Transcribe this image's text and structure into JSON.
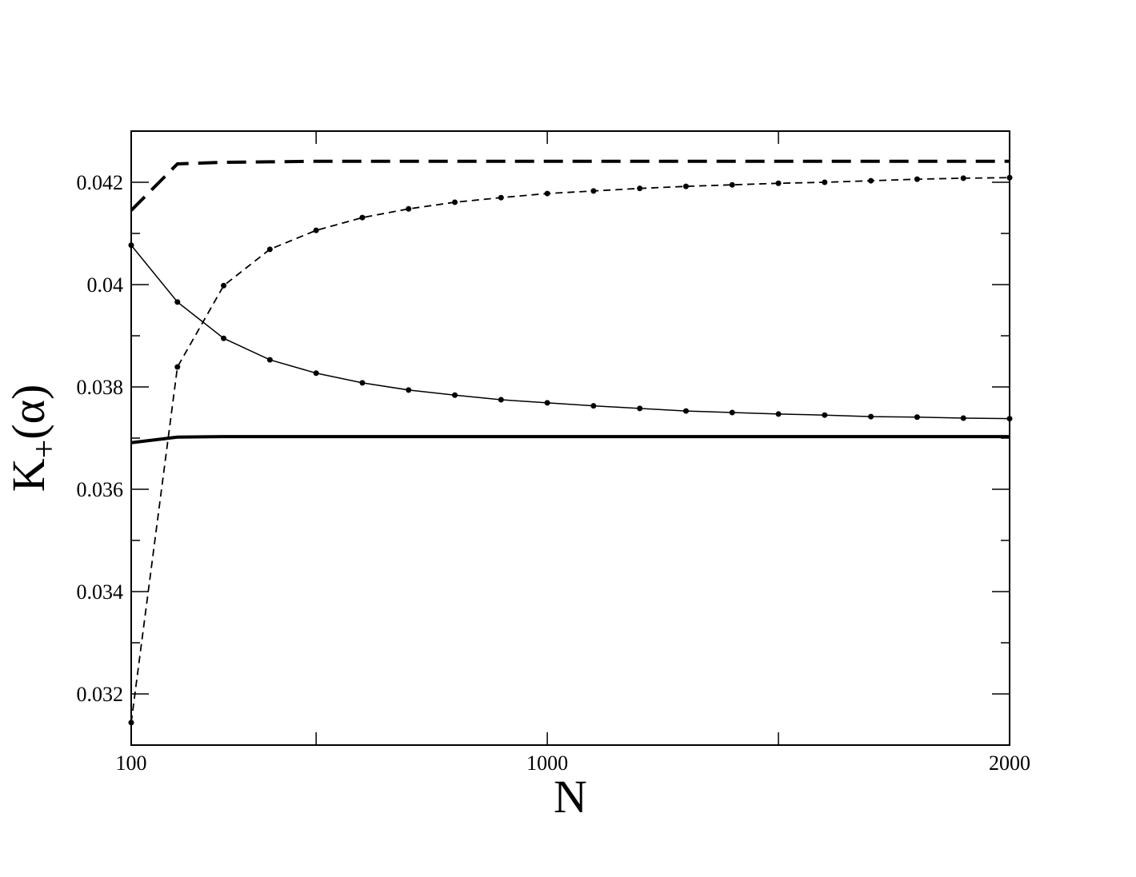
{
  "chart_data": {
    "type": "line",
    "xlabel": "N",
    "ylabel": {
      "base": "K",
      "sub": "+",
      "rest": "(α)"
    },
    "x": [
      100,
      200,
      300,
      400,
      500,
      600,
      700,
      800,
      900,
      1000,
      1100,
      1200,
      1300,
      1400,
      1500,
      1600,
      1700,
      1800,
      1900,
      2000
    ],
    "series": [
      {
        "color": "#000000",
        "dash": "24 12",
        "width": 4,
        "marker": false,
        "values": [
          0.04145,
          0.04236,
          0.04239,
          0.0424,
          0.04241,
          0.04241,
          0.04241,
          0.04241,
          0.04241,
          0.04241,
          0.04241,
          0.04241,
          0.04241,
          0.04241,
          0.04241,
          0.04241,
          0.04241,
          0.04241,
          0.04241,
          0.04241
        ]
      },
      {
        "color": "#000000",
        "dash": "9 6",
        "width": 1.8,
        "marker": true,
        "values": [
          0.03144,
          0.03839,
          0.03998,
          0.04069,
          0.04106,
          0.04131,
          0.04148,
          0.04161,
          0.0417,
          0.04178,
          0.04183,
          0.04188,
          0.04192,
          0.04195,
          0.04198,
          0.042,
          0.04203,
          0.04206,
          0.04208,
          0.04209
        ]
      },
      {
        "color": "#000000",
        "dash": "none",
        "width": 1.5,
        "marker": true,
        "values": [
          0.04077,
          0.03966,
          0.03895,
          0.03853,
          0.03827,
          0.03808,
          0.03794,
          0.03784,
          0.03775,
          0.03769,
          0.03763,
          0.03758,
          0.03753,
          0.0375,
          0.03747,
          0.03745,
          0.03742,
          0.03741,
          0.03739,
          0.03738
        ]
      },
      {
        "color": "#000000",
        "dash": "none",
        "width": 4,
        "marker": false,
        "values": [
          0.03691,
          0.03702,
          0.03703,
          0.03703,
          0.03703,
          0.03703,
          0.03703,
          0.03703,
          0.03703,
          0.03703,
          0.03703,
          0.03703,
          0.03703,
          0.03703,
          0.03703,
          0.03703,
          0.03703,
          0.03703,
          0.03703,
          0.03703
        ]
      }
    ],
    "xlim": [
      100,
      2000
    ],
    "xticks": [
      100,
      1000,
      2000
    ],
    "xminor_ticks": [
      500,
      1500
    ],
    "ylim": [
      0.031,
      0.043
    ],
    "yticks": [
      0.032,
      0.034,
      0.036,
      0.038,
      0.04,
      0.042
    ],
    "yminor_ticks": [
      0.033,
      0.035,
      0.037,
      0.039,
      0.041
    ],
    "grid": false
  }
}
